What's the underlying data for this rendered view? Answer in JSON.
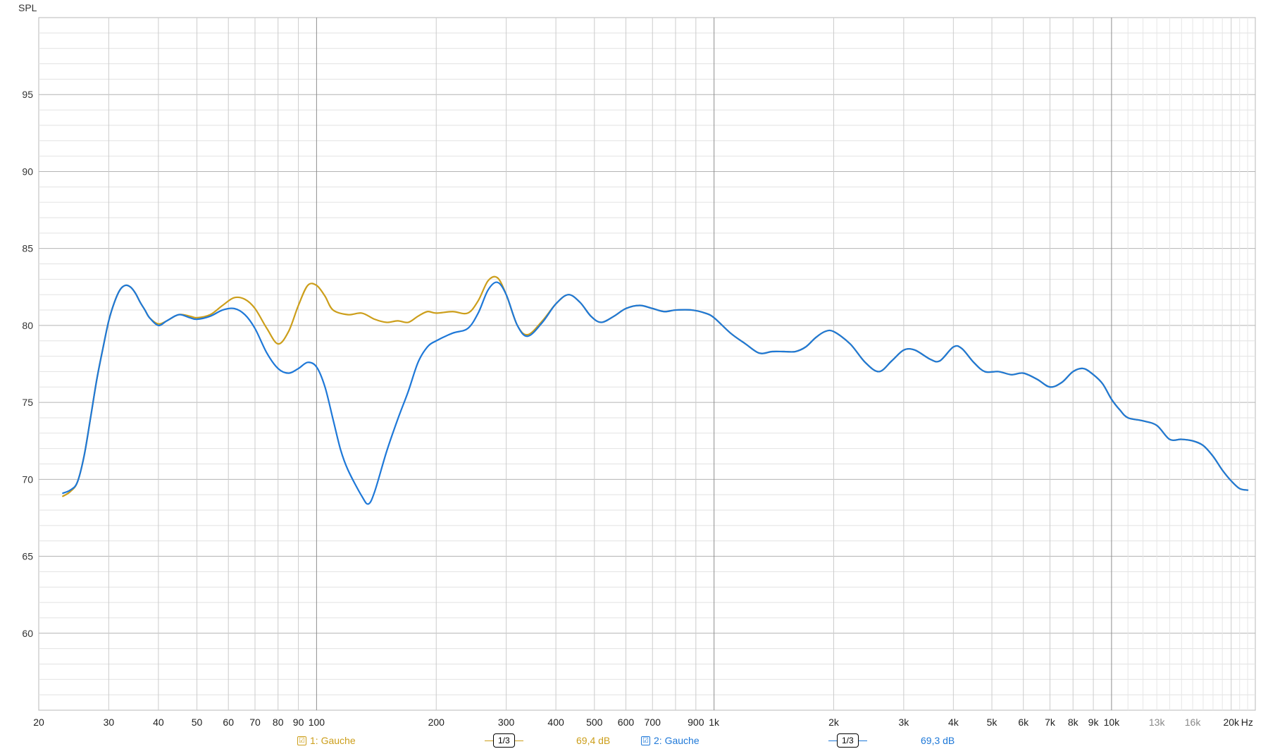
{
  "chart_data": {
    "type": "line",
    "ylabel": "SPL",
    "x_scale": "log",
    "xlim": [
      20,
      23000
    ],
    "ylim": [
      55,
      100
    ],
    "y_ticks": [
      60,
      65,
      70,
      75,
      80,
      85,
      90,
      95
    ],
    "x_ticks": [
      {
        "v": 20,
        "label": "20"
      },
      {
        "v": 30,
        "label": "30"
      },
      {
        "v": 40,
        "label": "40"
      },
      {
        "v": 50,
        "label": "50"
      },
      {
        "v": 60,
        "label": "60"
      },
      {
        "v": 70,
        "label": "70"
      },
      {
        "v": 80,
        "label": "80"
      },
      {
        "v": 90,
        "label": "90"
      },
      {
        "v": 100,
        "label": "100"
      },
      {
        "v": 200,
        "label": "200"
      },
      {
        "v": 300,
        "label": "300"
      },
      {
        "v": 400,
        "label": "400"
      },
      {
        "v": 500,
        "label": "500"
      },
      {
        "v": 600,
        "label": "600"
      },
      {
        "v": 700,
        "label": "700"
      },
      {
        "v": 900,
        "label": "900"
      },
      {
        "v": 1000,
        "label": "1k"
      },
      {
        "v": 2000,
        "label": "2k"
      },
      {
        "v": 3000,
        "label": "3k"
      },
      {
        "v": 4000,
        "label": "4k"
      },
      {
        "v": 5000,
        "label": "5k"
      },
      {
        "v": 6000,
        "label": "6k"
      },
      {
        "v": 7000,
        "label": "7k"
      },
      {
        "v": 8000,
        "label": "8k"
      },
      {
        "v": 9000,
        "label": "9k"
      },
      {
        "v": 10000,
        "label": "10k"
      },
      {
        "v": 13000,
        "label": "13k"
      },
      {
        "v": 16000,
        "label": "16k"
      },
      {
        "v": 20000,
        "label": "20k"
      }
    ],
    "x_unit": "Hz",
    "grid": true,
    "series": [
      {
        "name": "1: Gauche",
        "color": "#cc9e1a",
        "points": [
          [
            23,
            68.9
          ],
          [
            24,
            69.2
          ],
          [
            25,
            69.8
          ],
          [
            26,
            71.5
          ],
          [
            27,
            74.0
          ],
          [
            28,
            76.5
          ],
          [
            29,
            78.5
          ],
          [
            30,
            80.3
          ],
          [
            31,
            81.5
          ],
          [
            32,
            82.3
          ],
          [
            33,
            82.6
          ],
          [
            34,
            82.5
          ],
          [
            35,
            82.1
          ],
          [
            36,
            81.5
          ],
          [
            37,
            81.0
          ],
          [
            38,
            80.5
          ],
          [
            40,
            80.1
          ],
          [
            42,
            80.3
          ],
          [
            45,
            80.7
          ],
          [
            48,
            80.6
          ],
          [
            50,
            80.5
          ],
          [
            54,
            80.7
          ],
          [
            58,
            81.3
          ],
          [
            62,
            81.8
          ],
          [
            66,
            81.7
          ],
          [
            70,
            81.1
          ],
          [
            75,
            79.8
          ],
          [
            80,
            78.8
          ],
          [
            85,
            79.6
          ],
          [
            90,
            81.3
          ],
          [
            95,
            82.6
          ],
          [
            100,
            82.6
          ],
          [
            105,
            81.9
          ],
          [
            110,
            81.0
          ],
          [
            120,
            80.7
          ],
          [
            130,
            80.8
          ],
          [
            140,
            80.4
          ],
          [
            150,
            80.2
          ],
          [
            160,
            80.3
          ],
          [
            170,
            80.2
          ],
          [
            180,
            80.6
          ],
          [
            190,
            80.9
          ],
          [
            200,
            80.8
          ],
          [
            220,
            80.9
          ],
          [
            240,
            80.8
          ],
          [
            255,
            81.6
          ],
          [
            270,
            82.9
          ],
          [
            285,
            83.1
          ],
          [
            300,
            82.0
          ],
          [
            320,
            80.0
          ],
          [
            340,
            79.4
          ],
          [
            370,
            80.3
          ],
          [
            400,
            81.4
          ],
          [
            430,
            82.0
          ],
          [
            460,
            81.5
          ],
          [
            490,
            80.6
          ],
          [
            520,
            80.2
          ],
          [
            560,
            80.6
          ],
          [
            600,
            81.1
          ],
          [
            650,
            81.3
          ],
          [
            700,
            81.1
          ],
          [
            750,
            80.9
          ],
          [
            800,
            81.0
          ],
          [
            880,
            81.0
          ],
          [
            950,
            80.8
          ],
          [
            1000,
            80.5
          ],
          [
            1100,
            79.5
          ],
          [
            1200,
            78.8
          ],
          [
            1300,
            78.2
          ],
          [
            1400,
            78.3
          ],
          [
            1500,
            78.3
          ],
          [
            1600,
            78.3
          ],
          [
            1700,
            78.6
          ],
          [
            1800,
            79.2
          ],
          [
            1900,
            79.6
          ],
          [
            2000,
            79.6
          ],
          [
            2200,
            78.8
          ],
          [
            2400,
            77.6
          ],
          [
            2600,
            77.0
          ],
          [
            2800,
            77.7
          ],
          [
            3000,
            78.4
          ],
          [
            3200,
            78.4
          ],
          [
            3500,
            77.8
          ],
          [
            3700,
            77.7
          ],
          [
            4000,
            78.6
          ],
          [
            4200,
            78.5
          ],
          [
            4500,
            77.6
          ],
          [
            4800,
            77.0
          ],
          [
            5200,
            77.0
          ],
          [
            5600,
            76.8
          ],
          [
            6000,
            76.9
          ],
          [
            6500,
            76.5
          ],
          [
            7000,
            76.0
          ],
          [
            7500,
            76.3
          ],
          [
            8000,
            77.0
          ],
          [
            8500,
            77.2
          ],
          [
            9000,
            76.8
          ],
          [
            9500,
            76.2
          ],
          [
            10000,
            75.2
          ],
          [
            10500,
            74.5
          ],
          [
            11000,
            74.0
          ],
          [
            12000,
            73.8
          ],
          [
            13000,
            73.5
          ],
          [
            14000,
            72.6
          ],
          [
            15000,
            72.6
          ],
          [
            16000,
            72.5
          ],
          [
            17000,
            72.2
          ],
          [
            18000,
            71.5
          ],
          [
            19000,
            70.6
          ],
          [
            20000,
            69.9
          ],
          [
            21000,
            69.4
          ],
          [
            22000,
            69.3
          ]
        ]
      },
      {
        "name": "2: Gauche",
        "color": "#1e78d8",
        "points": [
          [
            23,
            69.1
          ],
          [
            24,
            69.3
          ],
          [
            25,
            69.8
          ],
          [
            26,
            71.5
          ],
          [
            27,
            74.0
          ],
          [
            28,
            76.5
          ],
          [
            29,
            78.5
          ],
          [
            30,
            80.3
          ],
          [
            31,
            81.5
          ],
          [
            32,
            82.3
          ],
          [
            33,
            82.6
          ],
          [
            34,
            82.5
          ],
          [
            35,
            82.1
          ],
          [
            36,
            81.5
          ],
          [
            37,
            81.0
          ],
          [
            38,
            80.5
          ],
          [
            40,
            80.0
          ],
          [
            42,
            80.3
          ],
          [
            45,
            80.7
          ],
          [
            48,
            80.5
          ],
          [
            50,
            80.4
          ],
          [
            54,
            80.6
          ],
          [
            58,
            81.0
          ],
          [
            62,
            81.1
          ],
          [
            66,
            80.7
          ],
          [
            70,
            79.8
          ],
          [
            75,
            78.2
          ],
          [
            80,
            77.2
          ],
          [
            85,
            76.9
          ],
          [
            90,
            77.2
          ],
          [
            95,
            77.6
          ],
          [
            100,
            77.3
          ],
          [
            105,
            76.0
          ],
          [
            110,
            73.9
          ],
          [
            115,
            71.9
          ],
          [
            120,
            70.6
          ],
          [
            130,
            68.9
          ],
          [
            135,
            68.4
          ],
          [
            140,
            69.2
          ],
          [
            150,
            71.8
          ],
          [
            160,
            73.9
          ],
          [
            170,
            75.7
          ],
          [
            180,
            77.6
          ],
          [
            190,
            78.6
          ],
          [
            200,
            79.0
          ],
          [
            220,
            79.5
          ],
          [
            240,
            79.8
          ],
          [
            255,
            80.8
          ],
          [
            270,
            82.3
          ],
          [
            285,
            82.8
          ],
          [
            300,
            82.0
          ],
          [
            320,
            80.0
          ],
          [
            340,
            79.3
          ],
          [
            370,
            80.2
          ],
          [
            400,
            81.4
          ],
          [
            430,
            82.0
          ],
          [
            460,
            81.5
          ],
          [
            490,
            80.6
          ],
          [
            520,
            80.2
          ],
          [
            560,
            80.6
          ],
          [
            600,
            81.1
          ],
          [
            650,
            81.3
          ],
          [
            700,
            81.1
          ],
          [
            750,
            80.9
          ],
          [
            800,
            81.0
          ],
          [
            880,
            81.0
          ],
          [
            950,
            80.8
          ],
          [
            1000,
            80.5
          ],
          [
            1100,
            79.5
          ],
          [
            1200,
            78.8
          ],
          [
            1300,
            78.2
          ],
          [
            1400,
            78.3
          ],
          [
            1500,
            78.3
          ],
          [
            1600,
            78.3
          ],
          [
            1700,
            78.6
          ],
          [
            1800,
            79.2
          ],
          [
            1900,
            79.6
          ],
          [
            2000,
            79.6
          ],
          [
            2200,
            78.8
          ],
          [
            2400,
            77.6
          ],
          [
            2600,
            77.0
          ],
          [
            2800,
            77.7
          ],
          [
            3000,
            78.4
          ],
          [
            3200,
            78.4
          ],
          [
            3500,
            77.8
          ],
          [
            3700,
            77.7
          ],
          [
            4000,
            78.6
          ],
          [
            4200,
            78.5
          ],
          [
            4500,
            77.6
          ],
          [
            4800,
            77.0
          ],
          [
            5200,
            77.0
          ],
          [
            5600,
            76.8
          ],
          [
            6000,
            76.9
          ],
          [
            6500,
            76.5
          ],
          [
            7000,
            76.0
          ],
          [
            7500,
            76.3
          ],
          [
            8000,
            77.0
          ],
          [
            8500,
            77.2
          ],
          [
            9000,
            76.8
          ],
          [
            9500,
            76.2
          ],
          [
            10000,
            75.2
          ],
          [
            10500,
            74.5
          ],
          [
            11000,
            74.0
          ],
          [
            12000,
            73.8
          ],
          [
            13000,
            73.5
          ],
          [
            14000,
            72.6
          ],
          [
            15000,
            72.6
          ],
          [
            16000,
            72.5
          ],
          [
            17000,
            72.2
          ],
          [
            18000,
            71.5
          ],
          [
            19000,
            70.6
          ],
          [
            20000,
            69.9
          ],
          [
            21000,
            69.4
          ],
          [
            22000,
            69.3
          ]
        ]
      }
    ]
  },
  "legend": {
    "items": [
      {
        "check": "☑",
        "label": "1: Gauche",
        "smoothing": "1/3",
        "level": "69,4 dB",
        "color": "#cc9e1a"
      },
      {
        "check": "☑",
        "label": "2: Gauche",
        "smoothing": "1/3",
        "level": "69,3 dB",
        "color": "#1e78d8"
      }
    ]
  }
}
